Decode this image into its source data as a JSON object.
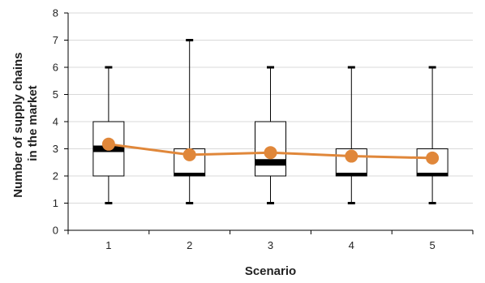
{
  "chart_data": {
    "type": "box",
    "xlabel": "Scenario",
    "ylabel_lines": [
      "Number of supply chains",
      "in the market"
    ],
    "ylim": [
      0,
      8
    ],
    "yticks": [
      0,
      1,
      2,
      3,
      4,
      5,
      6,
      7,
      8
    ],
    "grid": true,
    "categories": [
      "1",
      "2",
      "3",
      "4",
      "5"
    ],
    "boxes": [
      {
        "category": "1",
        "min": 1,
        "q1": 2,
        "median": 3,
        "q3": 4,
        "max": 6
      },
      {
        "category": "2",
        "min": 1,
        "q1": 2,
        "median": 2,
        "q3": 3,
        "max": 7
      },
      {
        "category": "3",
        "min": 1,
        "q1": 2,
        "median": 2.5,
        "q3": 4,
        "max": 6
      },
      {
        "category": "4",
        "min": 1,
        "q1": 2,
        "median": 2,
        "q3": 3,
        "max": 6
      },
      {
        "category": "5",
        "min": 1,
        "q1": 2,
        "median": 2,
        "q3": 3,
        "max": 6
      }
    ],
    "mean_line": {
      "values": [
        3.17,
        2.78,
        2.86,
        2.73,
        2.66
      ],
      "color": "#E0873A"
    },
    "colors": {
      "box_fill": "#ffffff",
      "box_stroke": "#000000",
      "median_bar": "#000000",
      "grid": "#d9d9d9"
    }
  }
}
